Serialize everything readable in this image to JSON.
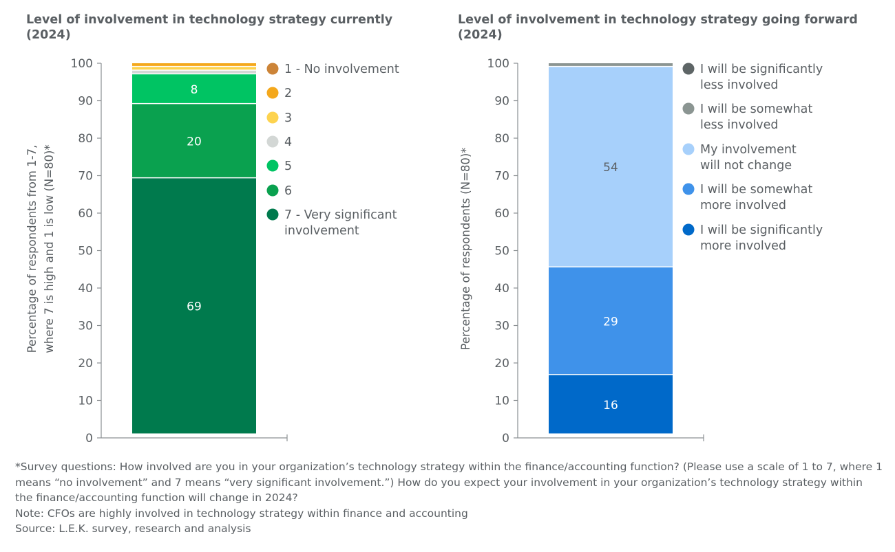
{
  "chart_data": [
    {
      "type": "bar",
      "stacked": true,
      "title": "Level of involvement in technology strategy currently (2024)",
      "ylabel": "Percentage of respondents from 1-7, where 7 is high and 1 is low (N=80)*",
      "ylim": [
        0,
        100
      ],
      "yticks": [
        "0",
        "10",
        "20",
        "30",
        "40",
        "50",
        "60",
        "70",
        "80",
        "90",
        "100"
      ],
      "legend_position": "right",
      "series": [
        {
          "name": "7 - Very significant involvement",
          "value": 69,
          "color": "#007a4d",
          "label": "69"
        },
        {
          "name": "6",
          "value": 20,
          "color": "#0aa14f",
          "label": "20"
        },
        {
          "name": "5",
          "value": 8,
          "color": "#00c463",
          "label": "8"
        },
        {
          "name": "4",
          "value": 1,
          "color": "#d3d7d5",
          "label": ""
        },
        {
          "name": "3",
          "value": 1,
          "color": "#fdd34f",
          "label": ""
        },
        {
          "name": "2",
          "value": 1,
          "color": "#f4a81c",
          "label": ""
        },
        {
          "name": "1 - No involvement",
          "value": 0,
          "color": "#cc8438",
          "label": ""
        }
      ]
    },
    {
      "type": "bar",
      "stacked": true,
      "title": "Level of involvement in technology strategy going forward (2024)",
      "ylabel": "Percentage of respondents (N=80)*",
      "ylim": [
        0,
        100
      ],
      "yticks": [
        "0",
        "10",
        "20",
        "30",
        "40",
        "50",
        "60",
        "70",
        "80",
        "90",
        "100"
      ],
      "legend_position": "right",
      "series": [
        {
          "name": "I will be significantly more involved",
          "value": 16,
          "color": "#0069c9",
          "label": "16"
        },
        {
          "name": "I will be somewhat more involved",
          "value": 29,
          "color": "#3f92ea",
          "label": "29"
        },
        {
          "name": "My involvement will not change",
          "value": 54,
          "color": "#a7d0fb",
          "label": "54"
        },
        {
          "name": "I will be somewhat less involved",
          "value": 1,
          "color": "#8b9592",
          "label": ""
        },
        {
          "name": "I will be significantly less involved",
          "value": 0,
          "color": "#5e6566",
          "label": ""
        }
      ]
    }
  ],
  "footnotes": [
    "*Survey questions: How involved are you in your organization’s technology strategy within the finance/accounting function? (Please use a scale of 1 to 7, where 1 means “no involvement” and 7 means “very significant involvement.”) How do you expect your involvement in your organization’s technology strategy within the finance/accounting function will change in 2024?",
    "Note: CFOs are highly involved in technology strategy within finance and accounting",
    "Source: L.E.K. survey, research and analysis"
  ]
}
